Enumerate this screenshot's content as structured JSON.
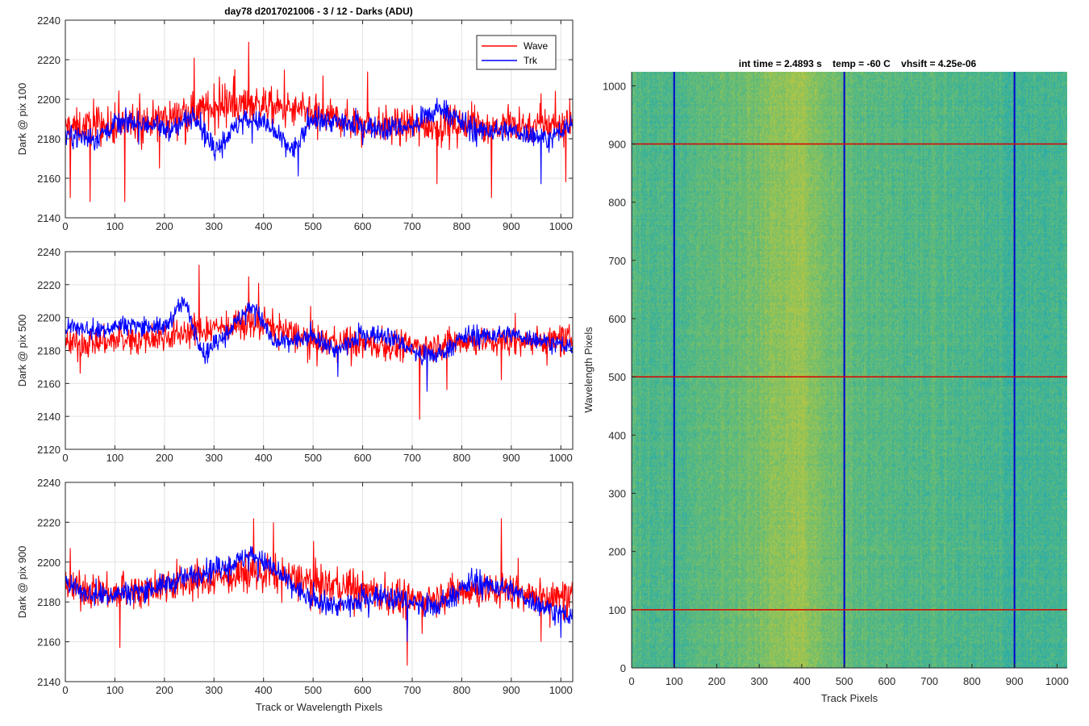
{
  "figure": {
    "title": "day78 d2017021006 - 3 / 12 - Darks (ADU)"
  },
  "chart_data": [
    {
      "type": "line",
      "title": "day78 d2017021006 - 3 / 12 - Darks (ADU)",
      "xlabel": "",
      "ylabel": "Dark @ pix 100",
      "xlim": [
        0,
        1024
      ],
      "ylim": [
        2140,
        2240
      ],
      "xticks": [
        0,
        100,
        200,
        300,
        400,
        500,
        600,
        700,
        800,
        900,
        1000
      ],
      "yticks": [
        2140,
        2160,
        2180,
        2200,
        2220,
        2240
      ],
      "grid": true,
      "legend": {
        "position": "top-right",
        "entries": [
          "Wave",
          "Trk"
        ]
      },
      "series": [
        {
          "name": "Wave",
          "color": "#ff0000",
          "mean": 2188,
          "noise": 8,
          "trend": [
            [
              0,
              2186
            ],
            [
              100,
              2186
            ],
            [
              200,
              2190
            ],
            [
              300,
              2196
            ],
            [
              380,
              2198
            ],
            [
              500,
              2192
            ],
            [
              600,
              2188
            ],
            [
              700,
              2186
            ],
            [
              800,
              2188
            ],
            [
              900,
              2186
            ],
            [
              1024,
              2188
            ]
          ],
          "spikes": [
            [
              10,
              2150
            ],
            [
              50,
              2148
            ],
            [
              120,
              2148
            ],
            [
              150,
              2203
            ],
            [
              190,
              2165
            ],
            [
              260,
              2221
            ],
            [
              300,
              2208
            ],
            [
              370,
              2229
            ],
            [
              400,
              2206
            ],
            [
              520,
              2212
            ],
            [
              610,
              2214
            ],
            [
              750,
              2157
            ],
            [
              770,
              2190
            ],
            [
              860,
              2150
            ],
            [
              960,
              2203
            ],
            [
              1010,
              2158
            ]
          ]
        },
        {
          "name": "Trk",
          "color": "#0000ff",
          "mean": 2186,
          "noise": 5,
          "trend": [
            [
              0,
              2182
            ],
            [
              60,
              2180
            ],
            [
              100,
              2188
            ],
            [
              150,
              2188
            ],
            [
              220,
              2184
            ],
            [
              260,
              2194
            ],
            [
              300,
              2174
            ],
            [
              360,
              2190
            ],
            [
              400,
              2188
            ],
            [
              460,
              2174
            ],
            [
              500,
              2190
            ],
            [
              560,
              2188
            ],
            [
              620,
              2186
            ],
            [
              700,
              2186
            ],
            [
              760,
              2196
            ],
            [
              820,
              2184
            ],
            [
              900,
              2184
            ],
            [
              980,
              2180
            ],
            [
              1024,
              2188
            ]
          ],
          "spikes": [
            [
              470,
              2161
            ],
            [
              960,
              2157
            ]
          ]
        }
      ]
    },
    {
      "type": "line",
      "xlabel": "",
      "ylabel": "Dark @ pix 500",
      "xlim": [
        0,
        1024
      ],
      "ylim": [
        2120,
        2240
      ],
      "xticks": [
        0,
        100,
        200,
        300,
        400,
        500,
        600,
        700,
        800,
        900,
        1000
      ],
      "yticks": [
        2120,
        2140,
        2160,
        2180,
        2200,
        2220,
        2240
      ],
      "grid": true,
      "series": [
        {
          "name": "Wave",
          "color": "#ff0000",
          "mean": 2186,
          "noise": 8,
          "trend": [
            [
              0,
              2184
            ],
            [
              100,
              2186
            ],
            [
              200,
              2188
            ],
            [
              300,
              2194
            ],
            [
              400,
              2196
            ],
            [
              500,
              2186
            ],
            [
              600,
              2184
            ],
            [
              700,
              2182
            ],
            [
              800,
              2186
            ],
            [
              900,
              2186
            ],
            [
              1024,
              2186
            ]
          ],
          "spikes": [
            [
              30,
              2166
            ],
            [
              270,
              2232
            ],
            [
              370,
              2225
            ],
            [
              390,
              2221
            ],
            [
              715,
              2138
            ],
            [
              730,
              2158
            ],
            [
              770,
              2156
            ],
            [
              880,
              2162
            ]
          ]
        },
        {
          "name": "Trk",
          "color": "#0000ff",
          "mean": 2190,
          "noise": 5,
          "trend": [
            [
              0,
              2196
            ],
            [
              60,
              2192
            ],
            [
              120,
              2196
            ],
            [
              200,
              2194
            ],
            [
              240,
              2210
            ],
            [
              280,
              2178
            ],
            [
              330,
              2192
            ],
            [
              380,
              2208
            ],
            [
              420,
              2184
            ],
            [
              500,
              2188
            ],
            [
              550,
              2180
            ],
            [
              600,
              2190
            ],
            [
              650,
              2190
            ],
            [
              720,
              2176
            ],
            [
              760,
              2178
            ],
            [
              800,
              2188
            ],
            [
              900,
              2190
            ],
            [
              1024,
              2182
            ]
          ],
          "spikes": [
            [
              550,
              2164
            ],
            [
              730,
              2155
            ]
          ]
        }
      ]
    },
    {
      "type": "line",
      "xlabel": "Track or Wavelength Pixels",
      "ylabel": "Dark @ pix 900",
      "xlim": [
        0,
        1024
      ],
      "ylim": [
        2140,
        2240
      ],
      "xticks": [
        0,
        100,
        200,
        300,
        400,
        500,
        600,
        700,
        800,
        900,
        1000
      ],
      "yticks": [
        2140,
        2160,
        2180,
        2200,
        2220,
        2240
      ],
      "grid": true,
      "series": [
        {
          "name": "Wave",
          "color": "#ff0000",
          "mean": 2186,
          "noise": 8,
          "trend": [
            [
              0,
              2188
            ],
            [
              100,
              2184
            ],
            [
              200,
              2188
            ],
            [
              300,
              2192
            ],
            [
              400,
              2194
            ],
            [
              500,
              2190
            ],
            [
              600,
              2186
            ],
            [
              700,
              2180
            ],
            [
              800,
              2186
            ],
            [
              900,
              2186
            ],
            [
              1024,
              2180
            ]
          ],
          "spikes": [
            [
              10,
              2207
            ],
            [
              110,
              2157
            ],
            [
              380,
              2222
            ],
            [
              420,
              2220
            ],
            [
              690,
              2148
            ],
            [
              720,
              2164
            ],
            [
              880,
              2222
            ],
            [
              960,
              2160
            ]
          ]
        },
        {
          "name": "Trk",
          "color": "#0000ff",
          "mean": 2186,
          "noise": 5,
          "trend": [
            [
              0,
              2192
            ],
            [
              40,
              2184
            ],
            [
              100,
              2184
            ],
            [
              160,
              2186
            ],
            [
              220,
              2190
            ],
            [
              280,
              2196
            ],
            [
              330,
              2198
            ],
            [
              380,
              2204
            ],
            [
              440,
              2192
            ],
            [
              500,
              2180
            ],
            [
              560,
              2178
            ],
            [
              640,
              2184
            ],
            [
              700,
              2180
            ],
            [
              740,
              2176
            ],
            [
              820,
              2190
            ],
            [
              900,
              2186
            ],
            [
              960,
              2178
            ],
            [
              1024,
              2172
            ]
          ],
          "spikes": [
            [
              690,
              2160
            ],
            [
              1000,
              2162
            ]
          ]
        }
      ]
    },
    {
      "type": "heatmap",
      "title": "int time = 2.4893 s    temp = -60 C    vhsift = 4.25e-06",
      "xlabel": "Track Pixels",
      "ylabel": "Wavelength Pixels",
      "xlim": [
        0,
        1024
      ],
      "ylim": [
        0,
        1024
      ],
      "xticks": [
        0,
        100,
        200,
        300,
        400,
        500,
        600,
        700,
        800,
        900,
        1000
      ],
      "yticks": [
        0,
        100,
        200,
        300,
        400,
        500,
        600,
        700,
        800,
        900,
        1000
      ],
      "colormap": [
        "#1a8fcc",
        "#24aab0",
        "#5fbb7a",
        "#a8c64a",
        "#d4c23e"
      ],
      "column_profile": [
        [
          0,
          0.45
        ],
        [
          100,
          0.42
        ],
        [
          200,
          0.5
        ],
        [
          280,
          0.55
        ],
        [
          360,
          0.68
        ],
        [
          400,
          0.72
        ],
        [
          440,
          0.6
        ],
        [
          500,
          0.52
        ],
        [
          600,
          0.45
        ],
        [
          700,
          0.45
        ],
        [
          800,
          0.42
        ],
        [
          900,
          0.38
        ],
        [
          1024,
          0.4
        ]
      ],
      "vertical_markers": {
        "color": "#0000cc",
        "x": [
          100,
          500,
          900
        ]
      },
      "horizontal_markers": {
        "color": "#dd0000",
        "y": [
          100,
          500,
          900
        ]
      }
    }
  ]
}
